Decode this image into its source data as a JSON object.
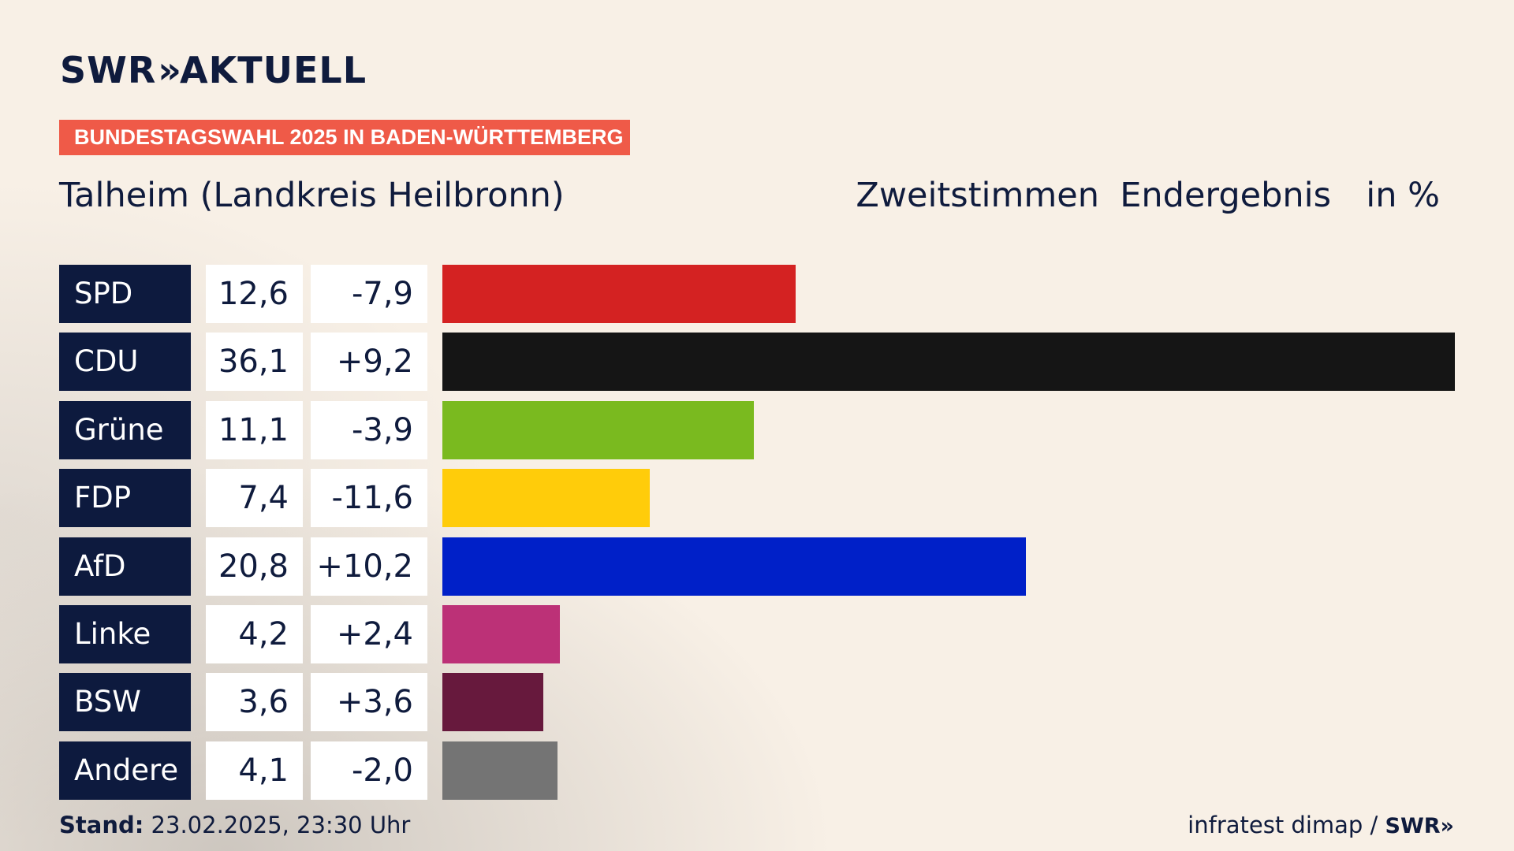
{
  "brand": {
    "logo_left": "SWR",
    "logo_chevrons": "»",
    "logo_right": "AKTUELL"
  },
  "kicker": "BUNDESTAGSWAHL 2025 IN BADEN-WÜRTTEMBERG",
  "place": "Talheim (Landkreis Heilbronn)",
  "header": {
    "votes": "Zweitstimmen",
    "status": "Endergebnis",
    "unit": "in %"
  },
  "colors": {
    "party_cell": "#0d1a3e",
    "kicker": "#ef5a48",
    "text": "#0f1b3d"
  },
  "chart_data": {
    "type": "bar",
    "orientation": "horizontal",
    "title": "Talheim (Landkreis Heilbronn)",
    "subtitle": "Zweitstimmen Endergebnis in %",
    "categories": [
      "SPD",
      "CDU",
      "Grüne",
      "FDP",
      "AfD",
      "Linke",
      "BSW",
      "Andere"
    ],
    "values": [
      12.6,
      36.1,
      11.1,
      7.4,
      20.8,
      4.2,
      3.6,
      4.1
    ],
    "value_labels": [
      "12,6",
      "36,1",
      "11,1",
      "7,4",
      "20,8",
      "4,2",
      "3,6",
      "4,1"
    ],
    "change_labels": [
      "-7,9",
      "+9,2",
      "-3,9",
      "-11,6",
      "+10,2",
      "+2,4",
      "+3,6",
      "-2,0"
    ],
    "change": [
      -7.9,
      9.2,
      -3.9,
      -11.6,
      10.2,
      2.4,
      3.6,
      -2.0
    ],
    "bar_colors": [
      "#d42222",
      "#151515",
      "#7aba1f",
      "#ffcc0a",
      "#0020c8",
      "#bc3177",
      "#67193d",
      "#747474"
    ],
    "xlim": [
      0,
      36.1
    ],
    "grid": false,
    "legend": "none"
  },
  "footer": {
    "stand_label": "Stand:",
    "stand_value": "23.02.2025, 23:30 Uhr",
    "source": "infratest dimap /",
    "source_brand": "SWR»"
  }
}
